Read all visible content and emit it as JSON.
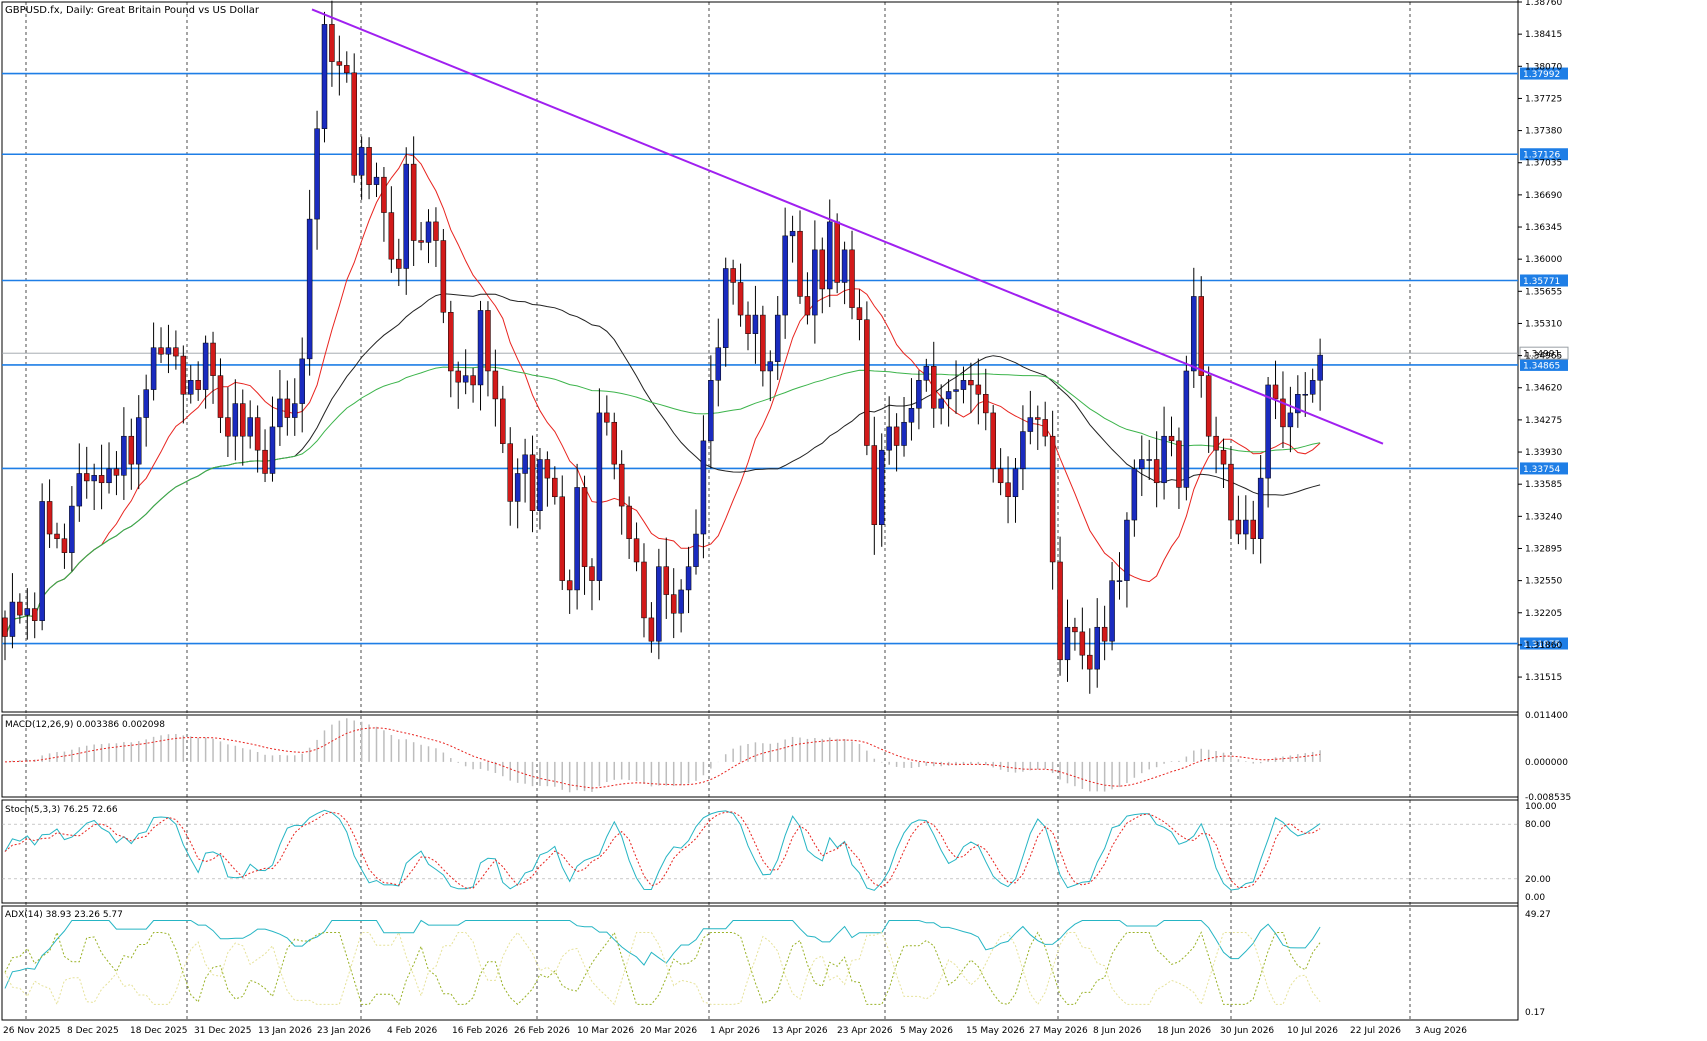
{
  "chart_data": {
    "type": "candlestick",
    "title": "GBPUSD.fx, Daily:  Great Britain Pound vs US Dollar",
    "symbol": "GBPUSD.fx",
    "timeframe": "Daily",
    "description": "Great Britain Pound vs US Dollar",
    "price_range": [
      1.3114,
      1.3876
    ],
    "y_ticks": [
      "1.38760",
      "1.38415",
      "1.38070",
      "1.37725",
      "1.37380",
      "1.37035",
      "1.36690",
      "1.36345",
      "1.36000",
      "1.35655",
      "1.35310",
      "1.34965",
      "1.34620",
      "1.34275",
      "1.33930",
      "1.33585",
      "1.33240",
      "1.32895",
      "1.32550",
      "1.32205",
      "1.31860",
      "1.31515"
    ],
    "x_labels": [
      "26 Nov 2025",
      "8 Dec 2025",
      "18 Dec 2025",
      "31 Dec 2025",
      "13 Jan 2026",
      "23 Jan 2026",
      "4 Feb 2026",
      "16 Feb 2026",
      "26 Feb 2026",
      "10 Mar 2026",
      "20 Mar 2026",
      "1 Apr 2026",
      "13 Apr 2026",
      "23 Apr 2026",
      "5 May 2026",
      "15 May 2026",
      "27 May 2026",
      "8 Jun 2026",
      "18 Jun 2026",
      "30 Jun 2026",
      "10 Jul 2026",
      "22 Jul 2026",
      "3 Aug 2026"
    ],
    "horizontal_levels": [
      {
        "price": 1.37992,
        "label": "1.37992"
      },
      {
        "price": 1.37126,
        "label": "1.37126"
      },
      {
        "price": 1.35771,
        "label": "1.35771"
      },
      {
        "price": 1.34865,
        "label": "1.34865"
      },
      {
        "price": 1.33754,
        "label": "1.33754"
      },
      {
        "price": 1.31875,
        "label": "1.31875"
      }
    ],
    "current_price": {
      "price": 1.34991,
      "label": "1.34991"
    },
    "trendline": {
      "from": [
        "23 Jan 2026",
        1.3868
      ],
      "to": [
        "14 Aug 2026",
        1.3402
      ]
    },
    "candles_close": [
      1.3195,
      1.3232,
      1.3218,
      1.3225,
      1.3212,
      1.334,
      1.3305,
      1.33,
      1.3285,
      1.3335,
      1.337,
      1.3362,
      1.3368,
      1.336,
      1.3375,
      1.3368,
      1.341,
      1.338,
      1.343,
      1.346,
      1.3505,
      1.3498,
      1.3505,
      1.3496,
      1.3455,
      1.347,
      1.346,
      1.351,
      1.3475,
      1.343,
      1.341,
      1.3445,
      1.341,
      1.343,
      1.3395,
      1.337,
      1.342,
      1.345,
      1.343,
      1.3445,
      1.3493,
      1.3643,
      1.374,
      1.3852,
      1.3812,
      1.3808,
      1.38,
      1.369,
      1.372,
      1.368,
      1.3688,
      1.365,
      1.36,
      1.359,
      1.3702,
      1.362,
      1.3618,
      1.364,
      1.362,
      1.3543,
      1.348,
      1.3468,
      1.3475,
      1.3465,
      1.3545,
      1.348,
      1.345,
      1.3402,
      1.334,
      1.337,
      1.339,
      1.333,
      1.3385,
      1.3365,
      1.3345,
      1.3255,
      1.3245,
      1.3355,
      1.327,
      1.3255,
      1.3435,
      1.3425,
      1.338,
      1.3335,
      1.33,
      1.3275,
      1.3215,
      1.319,
      1.327,
      1.324,
      1.322,
      1.3245,
      1.327,
      1.3305,
      1.3405,
      1.347,
      1.3505,
      1.359,
      1.3575,
      1.354,
      1.352,
      1.354,
      1.348,
      1.349,
      1.354,
      1.3625,
      1.363,
      1.356,
      1.354,
      1.361,
      1.3568,
      1.364,
      1.3575,
      1.361,
      1.3548,
      1.3535,
      1.34,
      1.3315,
      1.3395,
      1.342,
      1.34,
      1.3425,
      1.344,
      1.347,
      1.3485,
      1.344,
      1.345,
      1.3458,
      1.346,
      1.347,
      1.3465,
      1.3455,
      1.3435,
      1.3375,
      1.336,
      1.3345,
      1.3375,
      1.3415,
      1.343,
      1.3428,
      1.341,
      1.3275,
      1.317,
      1.3205,
      1.32,
      1.3175,
      1.316,
      1.3205,
      1.319,
      1.3255,
      1.3255,
      1.332,
      1.3375,
      1.3385,
      1.3385,
      1.336,
      1.341,
      1.3405,
      1.3355,
      1.348,
      1.356,
      1.3475,
      1.341,
      1.3395,
      1.338,
      1.332,
      1.3305,
      1.332,
      1.33,
      1.3365,
      1.3465,
      1.345,
      1.342,
      1.3435,
      1.3455,
      1.3455,
      1.347,
      1.3497
    ]
  }
}
